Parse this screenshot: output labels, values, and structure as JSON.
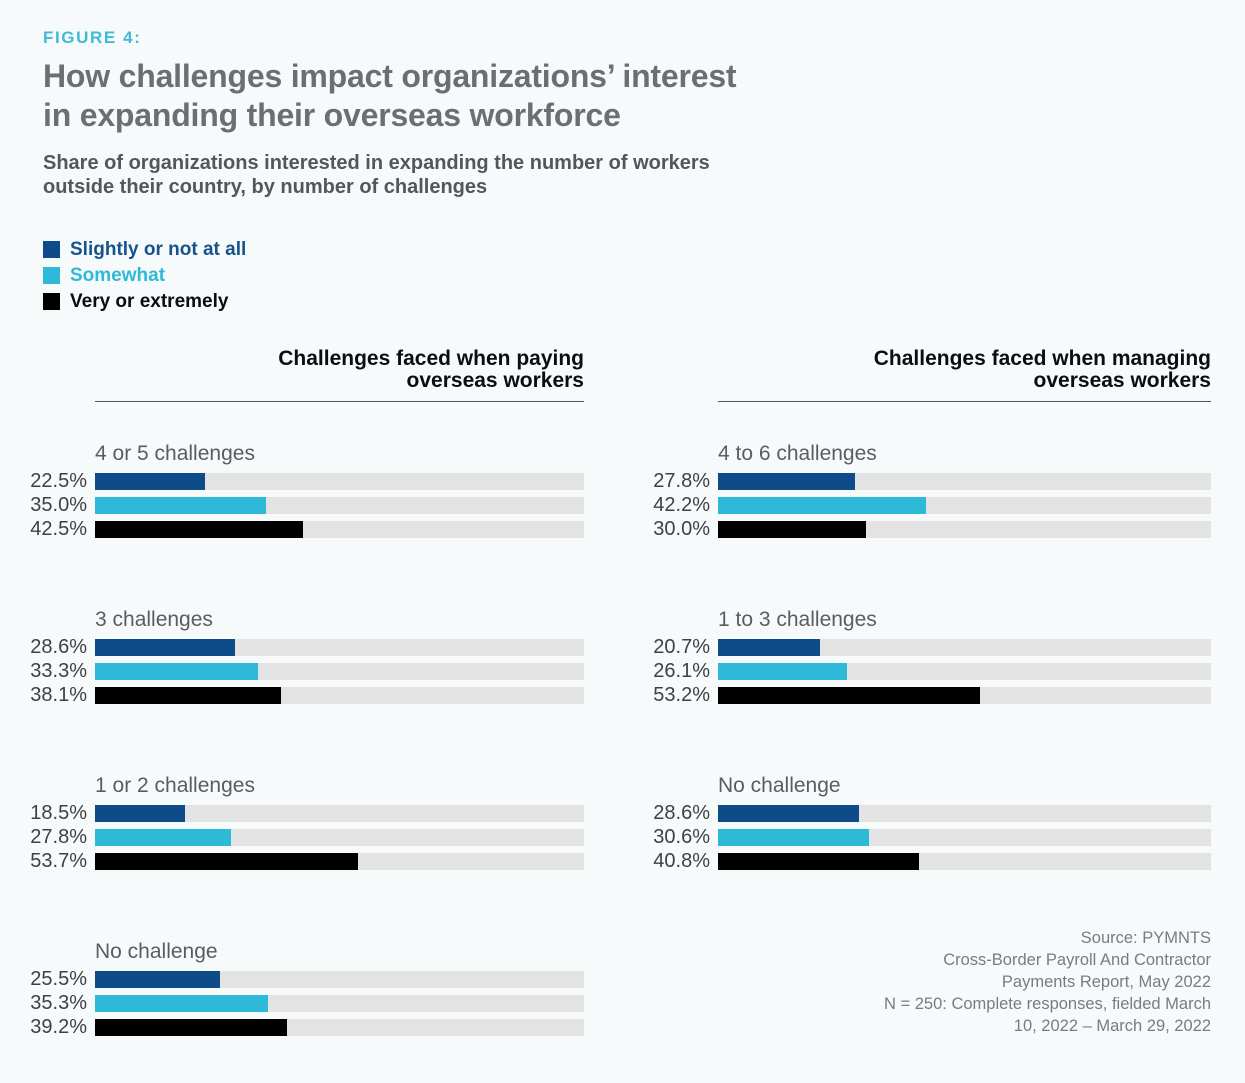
{
  "header": {
    "figure_label": "FIGURE 4:",
    "title": "How challenges impact organizations’ interest in expanding their overseas workforce",
    "title_lines": [
      "How challenges impact organizations’ interest",
      "in expanding their overseas workforce"
    ],
    "subtitle": "Share of organizations interested in expanding the number of workers outside their country, by number of challenges",
    "subtitle_lines": [
      "Share of organizations interested in expanding the number of workers",
      "outside their country, by number of challenges"
    ]
  },
  "colors": {
    "accent_figure_label": "#3fbad7",
    "series": [
      "#0e4c89",
      "#2fb9d8",
      "#000000"
    ],
    "track": "#e3e3e3",
    "background": "#f7fafb"
  },
  "legend": {
    "items": [
      "Slightly or not at all",
      "Somewhat",
      "Very or extremely"
    ]
  },
  "chart_data": [
    {
      "type": "bar",
      "orientation": "horizontal",
      "title": "Challenges faced when paying overseas workers",
      "title_lines": [
        "Challenges faced when paying",
        "overseas workers"
      ],
      "xlim": [
        0,
        100
      ],
      "unit": "percent",
      "grid": false,
      "legend_position": "top-left",
      "categories": [
        "4 or 5 challenges",
        "3 challenges",
        "1 or 2 challenges",
        "No challenge"
      ],
      "series": [
        {
          "name": "Slightly or not at all",
          "color": "#0e4c89",
          "values": [
            22.5,
            28.6,
            18.5,
            25.5
          ]
        },
        {
          "name": "Somewhat",
          "color": "#2fb9d8",
          "values": [
            35.0,
            33.3,
            27.8,
            35.3
          ]
        },
        {
          "name": "Very or extremely",
          "color": "#000000",
          "values": [
            42.5,
            38.1,
            53.7,
            39.2
          ]
        }
      ],
      "value_labels": [
        [
          "22.5%",
          "35.0%",
          "42.5%"
        ],
        [
          "28.6%",
          "33.3%",
          "38.1%"
        ],
        [
          "18.5%",
          "27.8%",
          "53.7%"
        ],
        [
          "25.5%",
          "35.3%",
          "39.2%"
        ]
      ]
    },
    {
      "type": "bar",
      "orientation": "horizontal",
      "title": "Challenges faced when managing overseas workers",
      "title_lines": [
        "Challenges faced when managing",
        "overseas workers"
      ],
      "xlim": [
        0,
        100
      ],
      "unit": "percent",
      "grid": false,
      "legend_position": "top-left",
      "categories": [
        "4 to 6 challenges",
        "1 to 3 challenges",
        "No challenge"
      ],
      "series": [
        {
          "name": "Slightly or not at all",
          "color": "#0e4c89",
          "values": [
            27.8,
            20.7,
            28.6
          ]
        },
        {
          "name": "Somewhat",
          "color": "#2fb9d8",
          "values": [
            42.2,
            26.1,
            30.6
          ]
        },
        {
          "name": "Very or extremely",
          "color": "#000000",
          "values": [
            30.0,
            53.2,
            40.8
          ]
        }
      ],
      "value_labels": [
        [
          "27.8%",
          "42.2%",
          "30.0%"
        ],
        [
          "20.7%",
          "26.1%",
          "53.2%"
        ],
        [
          "28.6%",
          "30.6%",
          "40.8%"
        ]
      ]
    }
  ],
  "source": {
    "lines": [
      "Source: PYMNTS",
      "Cross-Border Payroll And Contractor",
      "Payments Report, May 2022",
      "N = 250: Complete responses, fielded March",
      "10, 2022 – March 29, 2022"
    ]
  }
}
